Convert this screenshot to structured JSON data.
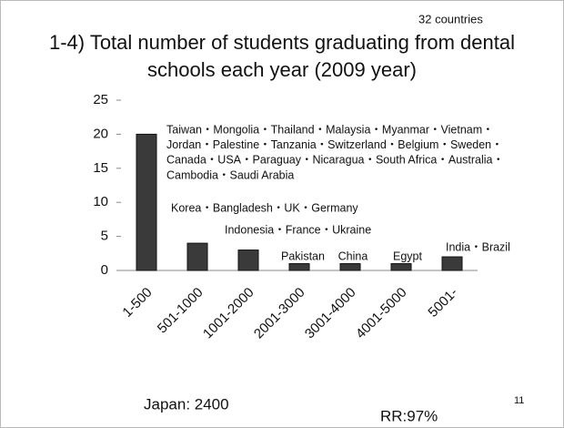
{
  "chart_data": {
    "type": "bar",
    "title_lines": [
      "1-4) Total number of students graduating from dental",
      "schools each year (2009 year)"
    ],
    "subtitle": "32 countries",
    "categories": [
      "1-500",
      "501-1000",
      "1001-2000",
      "2001-3000",
      "3001-4000",
      "4001-5000",
      "5001-"
    ],
    "values": [
      20,
      4,
      3,
      1,
      1,
      1,
      2
    ],
    "color": "#3a3a3a",
    "ylim": [
      0,
      25
    ],
    "yticks": [
      0,
      5,
      10,
      15,
      20,
      25
    ],
    "grid": false,
    "annotations": [
      [
        "Taiwan・Mongolia・Thailand・Malaysia・Myanmar・Vietnam・",
        "Jordan・Palestine・Tanzania・Switzerland・Belgium・Sweden・",
        "Canada・USA・Paraguay・Nicaragua・South Africa・Australia・",
        "Cambodia・Saudi Arabia"
      ],
      [
        "Korea・Bangladesh・UK・Germany"
      ],
      [
        "Indonesia・France・Ukraine"
      ],
      [
        "Pakistan"
      ],
      [
        "China"
      ],
      [
        "Egypt"
      ],
      [
        "India・Brazil"
      ]
    ],
    "notes": [
      "Japan: 2400",
      "RR:97%"
    ],
    "page_number": "11"
  }
}
